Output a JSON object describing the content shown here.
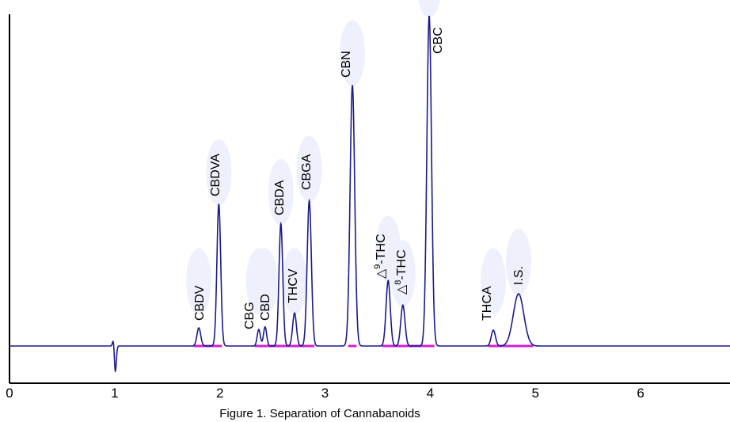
{
  "chart_data": {
    "type": "line",
    "caption": "Figure 1. Separation of Cannabanoids",
    "xlabel": "",
    "ylabel": "",
    "xlim": [
      0,
      6.85
    ],
    "ylim": [
      -0.12,
      1.0
    ],
    "grid": false,
    "x_ticks": [
      "0",
      "1",
      "2",
      "3",
      "4",
      "5",
      "6"
    ],
    "x_tick_values": [
      0,
      1,
      2,
      3,
      4,
      5,
      6
    ],
    "line_color": "#1a1a8c",
    "baseline_color": "#d020d0",
    "peaks": [
      {
        "label": "CBDV",
        "x": 1.8,
        "height": 0.055,
        "width": 0.018
      },
      {
        "label": "CBDVA",
        "x": 1.99,
        "height": 0.43,
        "width": 0.018
      },
      {
        "label": "CBG",
        "x": 2.37,
        "height": 0.05,
        "width": 0.015
      },
      {
        "label": "CBD",
        "x": 2.43,
        "height": 0.058,
        "width": 0.015
      },
      {
        "label": "CBDA",
        "x": 2.58,
        "height": 0.37,
        "width": 0.018
      },
      {
        "label": "THCV",
        "x": 2.71,
        "height": 0.1,
        "width": 0.018
      },
      {
        "label": "CBGA",
        "x": 2.85,
        "height": 0.44,
        "width": 0.02
      },
      {
        "label": "CBN",
        "x": 3.26,
        "height": 0.79,
        "width": 0.022
      },
      {
        "label": "Δ9-THC",
        "x": 3.6,
        "height": 0.198,
        "width": 0.02
      },
      {
        "label": "Δ8-THC",
        "x": 3.74,
        "height": 0.124,
        "width": 0.02
      },
      {
        "label": "CBC",
        "x": 3.99,
        "height": 1.0,
        "width": 0.022
      },
      {
        "label": "THCA",
        "x": 4.6,
        "height": 0.048,
        "width": 0.02
      },
      {
        "label": "I.S.",
        "x": 4.84,
        "height": 0.158,
        "width": 0.05
      }
    ],
    "disturbance": {
      "x": 1.0,
      "up": 0.045,
      "down": -0.1
    },
    "baseline_segments": [
      [
        1.75,
        2.02
      ],
      [
        2.33,
        2.9
      ],
      [
        3.22,
        3.3
      ],
      [
        3.54,
        4.04
      ],
      [
        4.55,
        4.98
      ]
    ]
  },
  "labels": {
    "cbdv": "CBDV",
    "cbdva": "CBDVA",
    "cbg": "CBG",
    "cbd": "CBD",
    "cbda": "CBDA",
    "thcv": "THCV",
    "cbga": "CBGA",
    "cbn": "CBN",
    "d9_prefix": "△",
    "d9_sup": "9",
    "d9_suffix": "-THC",
    "d8_prefix": "△",
    "d8_sup": "8",
    "d8_suffix": "-THC",
    "cbc": "CBC",
    "thca": "THCA",
    "is": "I.S."
  }
}
